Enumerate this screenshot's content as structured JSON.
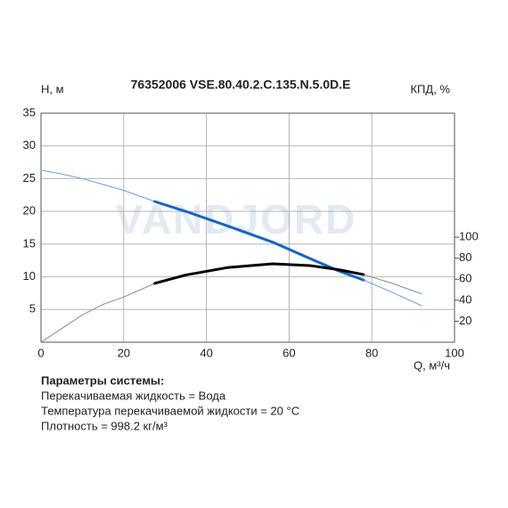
{
  "chart_data": {
    "type": "line",
    "title": "76352006 VSE.80.40.2.C.135.N.5.0D.E",
    "ylabel": "H, м",
    "y2label": "КПД, %",
    "xlabel": "Q, м³/ч",
    "watermark": "VANDJORD",
    "x": [
      0,
      5,
      10,
      15,
      20,
      27.5,
      35,
      45,
      56,
      65,
      72,
      78,
      85,
      92
    ],
    "operating_range": [
      27.5,
      78
    ],
    "series": [
      {
        "color": "#1565c0",
        "thin_color": "#6a9fd8",
        "axis": "y",
        "values": [
          26.3,
          25.7,
          25,
          24.1,
          23.2,
          21.5,
          20,
          17.8,
          15.3,
          12.8,
          10.9,
          9.5,
          7.6,
          5.6
        ]
      },
      {
        "color": "#000000",
        "thin_color": "#8a8a8a",
        "axis": "y2",
        "values": [
          0,
          13,
          26,
          36,
          43,
          56,
          64,
          71,
          74.6,
          73,
          69,
          64.4,
          56,
          46
        ]
      }
    ],
    "xlim": [
      0,
      100
    ],
    "xticks": [
      0,
      20,
      40,
      60,
      80,
      100
    ],
    "ylim": [
      0,
      35
    ],
    "yticks": [
      5,
      10,
      15,
      20,
      25,
      30,
      35
    ],
    "y2lim": [
      0,
      218
    ],
    "y2ticks": [
      20,
      40,
      60,
      80,
      100
    ],
    "grid": true,
    "notes": {
      "heading": "Параметры системы:",
      "lines": [
        "Перекачиваемая жидкость = Вода",
        "Температура перекачиваемой жидкости = 20 °C",
        "Плотность = 998.2 кг/м³"
      ]
    }
  }
}
